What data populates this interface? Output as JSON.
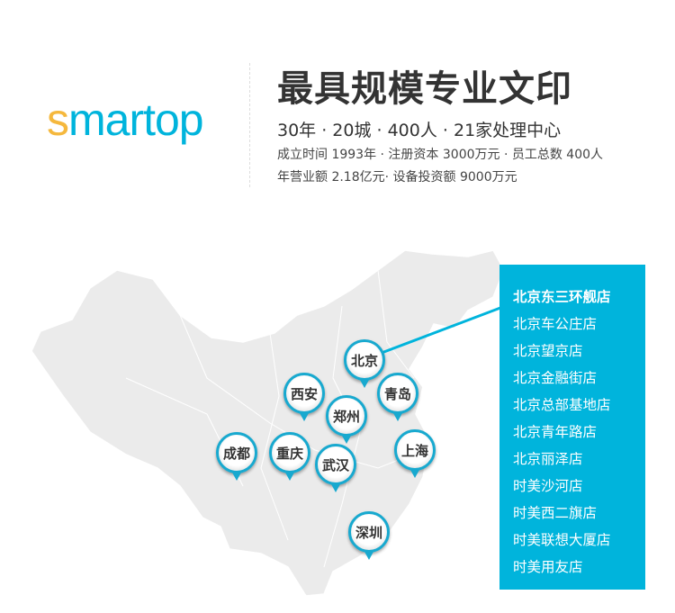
{
  "logo": {
    "text_s": "s",
    "text_rest": "martop",
    "colors": {
      "s": "#f5b83d",
      "rest": "#00b4dc"
    }
  },
  "header": {
    "title": "最具规模专业文印",
    "stats": "30年 · 20城 · 400人 · 21家处理中心",
    "line1": "成立时间 1993年 · 注册资本 3000万元 · 员工总数 400人",
    "line2": "年营业额 2.18亿元· 设备投资额 9000万元"
  },
  "map": {
    "cities": [
      "北京",
      "西安",
      "青岛",
      "郑州",
      "成都",
      "重庆",
      "武汉",
      "上海",
      "深圳"
    ],
    "accent": "#00b4dc"
  },
  "stores": [
    "北京东三环舰店",
    "北京车公庄店",
    "北京望京店",
    "北京金融街店",
    "北京总部基地店",
    "北京青年路店",
    "北京丽泽店",
    "时美沙河店",
    "时美西二旗店",
    "时美联想大厦店",
    "时美用友店"
  ]
}
